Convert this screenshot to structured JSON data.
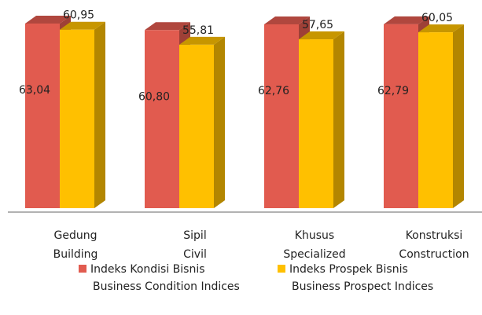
{
  "chart_data": {
    "type": "bar3d",
    "categories": [
      [
        "Gedung",
        "Building"
      ],
      [
        "Sipil",
        "Civil"
      ],
      [
        "Khusus",
        "Specialized"
      ],
      [
        "Konstruksi",
        "Construction"
      ]
    ],
    "series": [
      {
        "name": [
          "Indeks Kondisi Bisnis",
          "Business Condition Indices"
        ],
        "color": "#e15b4f",
        "values": [
          63.04,
          60.8,
          62.76,
          62.79
        ],
        "value_labels": [
          "63,04",
          "60,80",
          "62,76",
          "62,79"
        ]
      },
      {
        "name": [
          "Indeks Prospek Bisnis",
          "Business Prospect Indices"
        ],
        "color": "#ffc000",
        "values": [
          60.95,
          55.81,
          57.65,
          60.05
        ],
        "value_labels": [
          "60,95",
          "55,81",
          "57,65",
          "60,05"
        ]
      }
    ],
    "ylim": [
      0,
      70
    ]
  }
}
